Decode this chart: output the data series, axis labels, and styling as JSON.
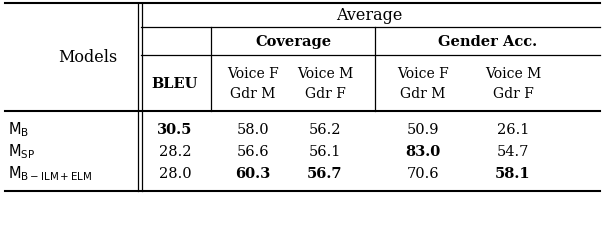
{
  "title": "Average",
  "coverage_label": "Coverage",
  "gender_label": "Gender Acc.",
  "bleu_label": "BLEU",
  "models_label": "Models",
  "col_headers": [
    "Voice F\nGdr M",
    "Voice M\nGdr F",
    "Voice F\nGdr M",
    "Voice M\nGdr F"
  ],
  "rows": [
    {
      "model_parts": [
        "M",
        "B",
        ""
      ],
      "values": [
        "30.5",
        "58.0",
        "56.2",
        "50.9",
        "26.1"
      ],
      "bold": [
        true,
        false,
        false,
        false,
        false
      ]
    },
    {
      "model_parts": [
        "M",
        "SP",
        ""
      ],
      "values": [
        "28.2",
        "56.6",
        "56.1",
        "83.0",
        "54.7"
      ],
      "bold": [
        false,
        false,
        false,
        true,
        false
      ]
    },
    {
      "model_parts": [
        "M",
        "B-ILM+ELM",
        ""
      ],
      "values": [
        "28.0",
        "60.3",
        "56.7",
        "70.6",
        "58.1"
      ],
      "bold": [
        false,
        true,
        true,
        false,
        true
      ]
    }
  ],
  "bg_color": "#ffffff",
  "text_color": "#000000",
  "font_size": 10.5
}
